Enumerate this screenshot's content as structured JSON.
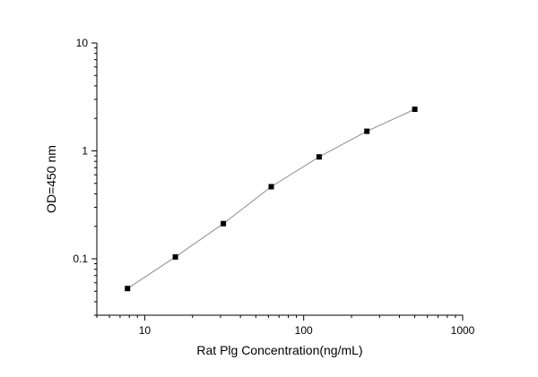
{
  "chart_data": {
    "type": "scatter",
    "xlabel": "Rat Plg Concentration(ng/mL)",
    "ylabel": "OD=450 nm",
    "xscale": "log",
    "yscale": "log",
    "xlim": [
      5,
      1000
    ],
    "ylim": [
      0.03,
      10
    ],
    "x_tick_labels": [
      "10",
      "100",
      "1000"
    ],
    "y_tick_labels": [
      "0.1",
      "1",
      "10"
    ],
    "grid": false,
    "marker": "square",
    "line": "fitted curve",
    "series": [
      {
        "x": [
          7.8,
          15.6,
          31.25,
          62.5,
          125,
          250,
          500
        ],
        "y": [
          0.053,
          0.104,
          0.212,
          0.466,
          0.88,
          1.52,
          2.43
        ]
      }
    ],
    "colors": {
      "marker": "#000000",
      "curve": "#8c8c8c"
    }
  }
}
